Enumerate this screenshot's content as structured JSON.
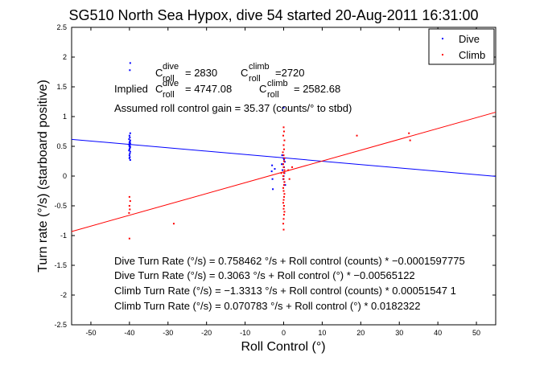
{
  "chart_data": {
    "type": "scatter",
    "title": "SG510 North Sea Hypox, dive 54 started 20-Aug-2011 16:31:00",
    "xlabel": "Roll Control (°)",
    "ylabel": "Turn rate (°/s) (starboard positive)",
    "xlim": [
      -55,
      55
    ],
    "ylim": [
      -2.5,
      2.5
    ],
    "xticks": [
      -50,
      -40,
      -30,
      -20,
      -10,
      0,
      10,
      20,
      30,
      40,
      50
    ],
    "yticks": [
      -2.5,
      -2,
      -1.5,
      -1,
      -0.5,
      0,
      0.5,
      1,
      1.5,
      2,
      2.5
    ],
    "grid": false,
    "legend_position": "top-right",
    "colors": {
      "dive": "#0000ff",
      "climb": "#ff0000"
    },
    "series": [
      {
        "name": "Dive",
        "color": "#0000ff",
        "points": [
          [
            -39.8,
            1.9
          ],
          [
            -39.9,
            1.78
          ],
          [
            -39.8,
            0.72
          ],
          [
            -40.0,
            0.68
          ],
          [
            -39.9,
            0.65
          ],
          [
            -40.1,
            0.62
          ],
          [
            -39.8,
            0.6
          ],
          [
            -39.9,
            0.58
          ],
          [
            -40.0,
            0.56
          ],
          [
            -39.8,
            0.55
          ],
          [
            -40.1,
            0.53
          ],
          [
            -39.9,
            0.52
          ],
          [
            -40.0,
            0.5
          ],
          [
            -39.8,
            0.49
          ],
          [
            -39.9,
            0.47
          ],
          [
            -40.0,
            0.45
          ],
          [
            -40.1,
            0.43
          ],
          [
            -39.8,
            0.41
          ],
          [
            -39.9,
            0.38
          ],
          [
            -40.0,
            0.35
          ],
          [
            -39.9,
            0.32
          ],
          [
            -40.0,
            0.3
          ],
          [
            -39.8,
            0.27
          ],
          [
            -3.0,
            0.18
          ],
          [
            -3.1,
            0.08
          ],
          [
            -2.9,
            -0.05
          ],
          [
            -2.3,
            0.12
          ],
          [
            -2.8,
            -0.22
          ],
          [
            -0.4,
            0.35
          ],
          [
            0.0,
            0.3
          ],
          [
            0.3,
            0.24
          ],
          [
            -0.2,
            0.2
          ],
          [
            0.1,
            0.15
          ],
          [
            -0.3,
            0.1
          ],
          [
            0.2,
            0.05
          ],
          [
            0.0,
            0.0
          ],
          [
            -0.1,
            -0.05
          ],
          [
            0.2,
            -0.1
          ],
          [
            0.4,
            -0.15
          ],
          [
            0.1,
            0.28
          ],
          [
            -0.5,
            0.2
          ],
          [
            0.0,
            1.15
          ]
        ]
      },
      {
        "name": "Climb",
        "color": "#ff0000",
        "points": [
          [
            -40.0,
            -1.05
          ],
          [
            -40.1,
            -0.62
          ],
          [
            -39.9,
            -0.56
          ],
          [
            -40.0,
            -0.5
          ],
          [
            -39.8,
            -0.42
          ],
          [
            -40.0,
            -0.35
          ],
          [
            0.0,
            0.82
          ],
          [
            0.1,
            0.75
          ],
          [
            -0.1,
            0.68
          ],
          [
            0.2,
            0.6
          ],
          [
            0.0,
            0.52
          ],
          [
            0.1,
            0.45
          ],
          [
            -0.2,
            0.4
          ],
          [
            0.0,
            0.35
          ],
          [
            0.2,
            0.3
          ],
          [
            0.1,
            0.25
          ],
          [
            -0.1,
            0.2
          ],
          [
            0.0,
            0.15
          ],
          [
            0.2,
            0.1
          ],
          [
            0.1,
            0.05
          ],
          [
            -0.1,
            0.0
          ],
          [
            0.0,
            -0.05
          ],
          [
            0.2,
            -0.1
          ],
          [
            0.1,
            -0.15
          ],
          [
            -0.1,
            -0.2
          ],
          [
            0.0,
            -0.25
          ],
          [
            0.2,
            -0.3
          ],
          [
            0.1,
            -0.35
          ],
          [
            0.0,
            -0.4
          ],
          [
            -0.1,
            -0.45
          ],
          [
            0.1,
            -0.5
          ],
          [
            0.0,
            -0.55
          ],
          [
            0.2,
            -0.6
          ],
          [
            0.1,
            -0.65
          ],
          [
            0.0,
            -0.72
          ],
          [
            -0.1,
            -0.8
          ],
          [
            0.0,
            -0.9
          ],
          [
            1.2,
            0.1
          ],
          [
            1.5,
            -0.05
          ],
          [
            -0.6,
            0.05
          ],
          [
            2.2,
            0.15
          ],
          [
            32.5,
            0.72
          ],
          [
            32.8,
            0.6
          ],
          [
            19.0,
            0.68
          ],
          [
            -28.5,
            -0.8
          ]
        ]
      }
    ],
    "fit_lines": [
      {
        "name": "Dive",
        "color": "#0000ff",
        "intercept": 0.3063,
        "slope": -0.00565122
      },
      {
        "name": "Climb",
        "color": "#ff0000",
        "intercept": 0.070783,
        "slope": 0.0182322
      }
    ],
    "annotations": {
      "c_dive": {
        "base": "C",
        "sup": "dive",
        "sub": "roll",
        "value": "= 2830"
      },
      "c_climb": {
        "base": "C",
        "sup": "climb",
        "sub": "roll",
        "value": "=2720"
      },
      "implied_prefix": "Implied",
      "implied_dive": {
        "base": "C",
        "sup": "dive",
        "sub": "roll",
        "value": "= 4747.08"
      },
      "implied_climb": {
        "base": "C",
        "sup": "climb",
        "sub": "roll",
        "value": "= 2582.68"
      },
      "gain": "Assumed roll control gain = 35.37 (counts/° to stbd)",
      "eq_dive_counts": "Dive Turn Rate (°/s) = 0.758462 °/s + Roll control (counts) * −0.0001597775",
      "eq_dive_deg": "Dive Turn Rate (°/s) = 0.3063 °/s + Roll control (°) * −0.00565122",
      "eq_climb_counts": "Climb Turn Rate (°/s) = −1.3313 °/s + Roll control (counts) * 0.00051547 1",
      "eq_climb_deg": "Climb Turn Rate (°/s) = 0.070783 °/s + Roll control (°) * 0.0182322"
    }
  }
}
